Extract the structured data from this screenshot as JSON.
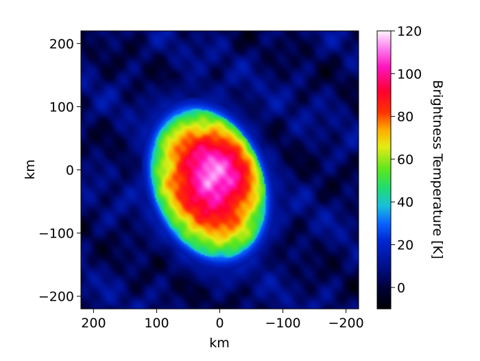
{
  "chart_data": {
    "type": "heatmap",
    "title": "",
    "xlabel": "km",
    "ylabel": "km",
    "colorbar_label": "Brightness Temperature [K]",
    "xlim": [
      220,
      -220
    ],
    "ylim": [
      -220,
      220
    ],
    "x_ticks": [
      200,
      100,
      0,
      -100,
      -200
    ],
    "x_tick_labels": [
      "200",
      "100",
      "0",
      "−100",
      "−200"
    ],
    "y_ticks": [
      200,
      100,
      0,
      -100,
      -200
    ],
    "y_tick_labels": [
      "200",
      "100",
      "0",
      "−100",
      "−200"
    ],
    "colorbar_range": [
      -10,
      120
    ],
    "colorbar_ticks": [
      0,
      20,
      40,
      60,
      80,
      100,
      120
    ],
    "colorbar_tick_labels": [
      "0",
      "20",
      "40",
      "60",
      "80",
      "100",
      "120"
    ],
    "colormap_stops": [
      {
        "value": -10,
        "color": "#000000"
      },
      {
        "value": 0,
        "color": "#00003a"
      },
      {
        "value": 10,
        "color": "#000f8c"
      },
      {
        "value": 22,
        "color": "#0028d2"
      },
      {
        "value": 30,
        "color": "#0a64ff"
      },
      {
        "value": 38,
        "color": "#18bede"
      },
      {
        "value": 46,
        "color": "#1edc78"
      },
      {
        "value": 55,
        "color": "#5ae61e"
      },
      {
        "value": 66,
        "color": "#e6eb14"
      },
      {
        "value": 74,
        "color": "#ffaa00"
      },
      {
        "value": 82,
        "color": "#ff3200"
      },
      {
        "value": 92,
        "color": "#ff0032"
      },
      {
        "value": 103,
        "color": "#ff14be"
      },
      {
        "value": 112,
        "color": "#ff82f0"
      },
      {
        "value": 120,
        "color": "#fff5ff"
      }
    ],
    "source": {
      "center_x_km": 18,
      "center_y_km": -22,
      "semi_axis_major_km": 122,
      "semi_axis_minor_km": 87,
      "orientation_deg": -20,
      "peak_temperature_K": 120,
      "peak_x_km": -20,
      "peak_y_km": 15,
      "background_temperature_K": 5
    }
  }
}
